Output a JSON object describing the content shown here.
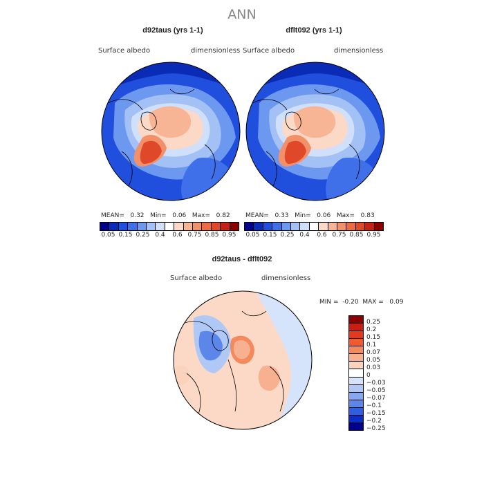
{
  "chart_data": [
    {
      "type": "heatmap",
      "projection": "polar-stereographic",
      "title": "d92taus (yrs 1-1)",
      "variable_label": "Surface albedo",
      "units_label": "dimensionless",
      "stats": {
        "mean_label": "MEAN=",
        "mean": "0.32",
        "min_label": "Min=",
        "min": "0.06",
        "max_label": "Max=",
        "max": "0.82"
      },
      "colorbar_ticks": [
        "0.05",
        "0.15",
        "0.25",
        "0.4",
        "0.6",
        "0.75",
        "0.85",
        "0.95"
      ]
    },
    {
      "type": "heatmap",
      "projection": "polar-stereographic",
      "title": "dflt092 (yrs 1-1)",
      "variable_label": "Surface albedo",
      "units_label": "dimensionless",
      "stats": {
        "mean_label": "MEAN=",
        "mean": "0.33",
        "min_label": "Min=",
        "min": "0.06",
        "max_label": "Max=",
        "max": "0.83"
      },
      "colorbar_ticks": [
        "0.05",
        "0.15",
        "0.25",
        "0.4",
        "0.6",
        "0.75",
        "0.85",
        "0.95"
      ]
    },
    {
      "type": "heatmap",
      "projection": "polar-stereographic",
      "title": "d92taus - dflt092",
      "variable_label": "Surface albedo",
      "units_label": "dimensionless",
      "stats": {
        "min_label": "MIN =",
        "min": "-0.20",
        "max_label": "MAX =",
        "max": "0.09"
      },
      "colorbar_ticks": [
        "0.25",
        "0.2",
        "0.15",
        "0.1",
        "0.07",
        "0.05",
        "0.03",
        "0",
        "−0.03",
        "−0.05",
        "−0.07",
        "−0.1",
        "−0.15",
        "−0.2",
        "−0.25"
      ]
    }
  ],
  "page": {
    "title": "ANN"
  },
  "colors": {
    "abs_scale": [
      "#00008b",
      "#0a2bb5",
      "#1f4fdc",
      "#3f70ea",
      "#6d98f0",
      "#a3c1f4",
      "#d0e0fa",
      "#ffffff",
      "#fbd9c6",
      "#f7b596",
      "#f2906a",
      "#ec6b45",
      "#e0482a",
      "#c42418",
      "#8b0000"
    ],
    "diff_scale": [
      "#8b0000",
      "#c81e14",
      "#e5381c",
      "#ef5a2f",
      "#f38a5d",
      "#f7b190",
      "#fbd3bd",
      "#ffffff",
      "#d6e4fb",
      "#afc8f6",
      "#86a8f0",
      "#5c86ea",
      "#2f5fe0",
      "#0a2fc8",
      "#00008b"
    ]
  }
}
